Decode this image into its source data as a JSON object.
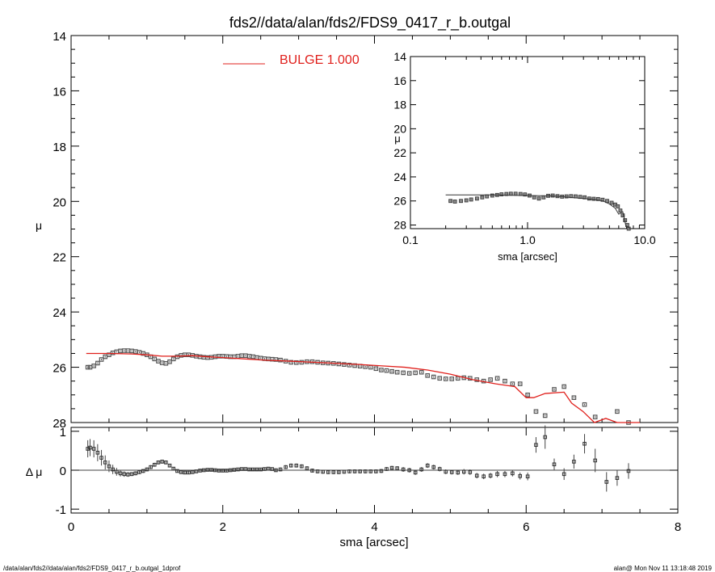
{
  "title": "fds2//data/alan/fds2/FDS9_0417_r_b.outgal",
  "footer": {
    "left": "/data/alan/fds2//data/alan/fds2/FDS9_0417_r_b.outgal_1dprof",
    "right": "alan@  Mon Nov 11 13:18:48 2019"
  },
  "colors": {
    "model": "#e0201c",
    "data": "#555555",
    "axis": "#000000"
  },
  "chart_data": [
    {
      "id": "main",
      "type": "scatter",
      "ylabel": "μ",
      "xlim": [
        0,
        8
      ],
      "ylim": [
        28,
        14
      ],
      "yticks": [
        "14",
        "16",
        "18",
        "20",
        "22",
        "24",
        "26",
        "28"
      ],
      "legend": {
        "label": "BULGE  1.000",
        "position": "top-left"
      },
      "series": [
        {
          "kind": "markers",
          "x": [
            0.22,
            0.25,
            0.3,
            0.35,
            0.4,
            0.45,
            0.5,
            0.55,
            0.6,
            0.65,
            0.7,
            0.75,
            0.8,
            0.85,
            0.9,
            0.95,
            1.0,
            1.05,
            1.1,
            1.15,
            1.2,
            1.25,
            1.3,
            1.35,
            1.4,
            1.45,
            1.5,
            1.55,
            1.6,
            1.65,
            1.7,
            1.75,
            1.8,
            1.85,
            1.9,
            1.95,
            2.0,
            2.05,
            2.1,
            2.15,
            2.2,
            2.25,
            2.3,
            2.35,
            2.4,
            2.45,
            2.5,
            2.55,
            2.6,
            2.65,
            2.7,
            2.76,
            2.83,
            2.9,
            2.97,
            3.04,
            3.11,
            3.18,
            3.25,
            3.32,
            3.39,
            3.46,
            3.53,
            3.6,
            3.67,
            3.74,
            3.81,
            3.88,
            3.95,
            4.02,
            4.09,
            4.16,
            4.23,
            4.3,
            4.38,
            4.46,
            4.54,
            4.62,
            4.7,
            4.78,
            4.86,
            4.94,
            5.02,
            5.1,
            5.18,
            5.26,
            5.35,
            5.44,
            5.53,
            5.62,
            5.72,
            5.82,
            5.92,
            6.02,
            6.13,
            6.25,
            6.37,
            6.5,
            6.63,
            6.77,
            6.91,
            7.06,
            7.2,
            7.35
          ],
          "y": [
            26.0,
            26.0,
            25.95,
            25.85,
            25.72,
            25.62,
            25.55,
            25.48,
            25.44,
            25.41,
            25.4,
            25.4,
            25.41,
            25.43,
            25.46,
            25.5,
            25.55,
            25.62,
            25.7,
            25.78,
            25.84,
            25.86,
            25.8,
            25.7,
            25.62,
            25.57,
            25.55,
            25.55,
            25.57,
            25.6,
            25.62,
            25.64,
            25.65,
            25.64,
            25.62,
            25.6,
            25.6,
            25.61,
            25.62,
            25.62,
            25.6,
            25.58,
            25.58,
            25.6,
            25.62,
            25.65,
            25.67,
            25.69,
            25.7,
            25.71,
            25.72,
            25.74,
            25.78,
            25.82,
            25.83,
            25.82,
            25.8,
            25.8,
            25.82,
            25.84,
            25.85,
            25.86,
            25.88,
            25.9,
            25.92,
            25.94,
            25.96,
            25.98,
            26.0,
            26.05,
            26.1,
            26.12,
            26.15,
            26.18,
            26.2,
            26.22,
            26.2,
            26.18,
            26.3,
            26.35,
            26.4,
            26.42,
            26.42,
            26.4,
            26.38,
            26.4,
            26.45,
            26.5,
            26.45,
            26.4,
            26.5,
            26.6,
            26.6,
            27.0,
            27.6,
            27.75,
            26.8,
            26.7,
            27.1,
            27.35,
            27.8,
            28.5,
            27.6,
            28.0
          ],
          "error": [
            0.03,
            0.03,
            0.03,
            0.03,
            0.03,
            0.03,
            0.03,
            0.03,
            0.03,
            0.03,
            0.03,
            0.03,
            0.03,
            0.03,
            0.03,
            0.03,
            0.03,
            0.03,
            0.03,
            0.03,
            0.03,
            0.03,
            0.03,
            0.03,
            0.03,
            0.03,
            0.03,
            0.03,
            0.03,
            0.03,
            0.03,
            0.03,
            0.03,
            0.03,
            0.03,
            0.03,
            0.03,
            0.03,
            0.03,
            0.03,
            0.03,
            0.03,
            0.03,
            0.03,
            0.03,
            0.03,
            0.03,
            0.03,
            0.03,
            0.03,
            0.03,
            0.03,
            0.03,
            0.03,
            0.03,
            0.03,
            0.03,
            0.03,
            0.03,
            0.03,
            0.03,
            0.03,
            0.03,
            0.03,
            0.03,
            0.03,
            0.03,
            0.03,
            0.03,
            0.03,
            0.03,
            0.03,
            0.03,
            0.03,
            0.03,
            0.03,
            0.03,
            0.03,
            0.03,
            0.03,
            0.03,
            0.03,
            0.03,
            0.03,
            0.03,
            0.03,
            0.03,
            0.03,
            0.03,
            0.03,
            0.03,
            0.03,
            0.03,
            0.03,
            0.03,
            0.03,
            0.03,
            0.03,
            0.03,
            0.03,
            0.03,
            0.03,
            0.03,
            0.03
          ]
        },
        {
          "kind": "line",
          "x": [
            0.2,
            0.5,
            0.8,
            1.0,
            1.2,
            1.4,
            1.6,
            1.8,
            2.0,
            2.3,
            2.6,
            2.9,
            3.2,
            3.5,
            3.8,
            4.1,
            4.4,
            4.7,
            5.0,
            5.3,
            5.6,
            5.85,
            6.0,
            6.1,
            6.25,
            6.5,
            6.6,
            6.75,
            6.9,
            7.05,
            7.2,
            7.5
          ],
          "y": [
            25.5,
            25.5,
            25.52,
            25.55,
            25.6,
            25.6,
            25.58,
            25.62,
            25.65,
            25.7,
            25.75,
            25.78,
            25.82,
            25.86,
            25.9,
            25.95,
            26.0,
            26.1,
            26.25,
            26.45,
            26.6,
            26.7,
            27.1,
            27.1,
            26.95,
            26.9,
            27.3,
            27.6,
            28.05,
            27.85,
            28.0,
            28.1
          ]
        }
      ]
    },
    {
      "id": "inset",
      "type": "scatter",
      "ylabel": "μ",
      "xlabel": "sma [arcsec]",
      "xscale": "log",
      "xlim": [
        0.1,
        10
      ],
      "ylim": [
        28.3,
        14
      ],
      "xticks": [
        {
          "v": 0.1,
          "label": "0.1"
        },
        {
          "v": 1,
          "label": "1.0"
        },
        {
          "v": 10,
          "label": "10.0"
        }
      ],
      "yticks": [
        "14",
        "16",
        "18",
        "20",
        "22",
        "24",
        "26",
        "28"
      ],
      "series": [
        {
          "kind": "markers",
          "x": [
            0.22,
            0.24,
            0.27,
            0.3,
            0.33,
            0.37,
            0.41,
            0.45,
            0.5,
            0.55,
            0.6,
            0.66,
            0.72,
            0.79,
            0.87,
            0.95,
            1.04,
            1.14,
            1.25,
            1.37,
            1.5,
            1.64,
            1.8,
            1.97,
            2.15,
            2.35,
            2.57,
            2.81,
            3.07,
            3.36,
            3.67,
            4.0,
            4.37,
            4.78,
            5.22,
            5.6,
            5.9,
            6.2,
            6.5,
            6.8,
            7.1,
            7.3
          ],
          "y": [
            26.0,
            26.05,
            26.0,
            25.95,
            25.88,
            25.8,
            25.7,
            25.62,
            25.55,
            25.5,
            25.45,
            25.42,
            25.4,
            25.4,
            25.42,
            25.46,
            25.55,
            25.7,
            25.8,
            25.7,
            25.57,
            25.55,
            25.6,
            25.64,
            25.62,
            25.6,
            25.62,
            25.66,
            25.7,
            25.8,
            25.82,
            25.84,
            25.9,
            26.0,
            26.15,
            26.3,
            26.45,
            26.8,
            27.2,
            27.6,
            28.0,
            28.3
          ]
        },
        {
          "kind": "line",
          "x": [
            0.2,
            0.5,
            1.0,
            1.6,
            2.0,
            2.6,
            3.2,
            3.8,
            4.4,
            5.0,
            5.6,
            6.0,
            6.5,
            6.9,
            7.5
          ],
          "y": [
            25.5,
            25.5,
            25.55,
            25.58,
            25.65,
            25.75,
            25.82,
            25.9,
            26.0,
            26.25,
            26.6,
            27.1,
            26.9,
            28.05,
            28.3
          ]
        }
      ]
    },
    {
      "id": "residual",
      "type": "scatter",
      "ylabel": "Δ μ",
      "xlabel": "sma [arcsec]",
      "xlim": [
        0,
        8
      ],
      "ylim": [
        -1.1,
        1.1
      ],
      "xticks": [
        "0",
        "2",
        "4",
        "6",
        "8"
      ],
      "yticks": [
        {
          "v": 1,
          "label": "1"
        },
        {
          "v": 0,
          "label": "0"
        },
        {
          "v": -1,
          "label": "-1"
        }
      ],
      "series": [
        {
          "kind": "markers",
          "x": [
            0.22,
            0.25,
            0.3,
            0.35,
            0.4,
            0.45,
            0.5,
            0.55,
            0.6,
            0.65,
            0.7,
            0.75,
            0.8,
            0.85,
            0.9,
            0.95,
            1.0,
            1.05,
            1.1,
            1.15,
            1.2,
            1.25,
            1.3,
            1.35,
            1.4,
            1.45,
            1.5,
            1.55,
            1.6,
            1.65,
            1.7,
            1.75,
            1.8,
            1.85,
            1.9,
            1.95,
            2.0,
            2.05,
            2.1,
            2.15,
            2.2,
            2.25,
            2.3,
            2.35,
            2.4,
            2.45,
            2.5,
            2.55,
            2.6,
            2.65,
            2.7,
            2.76,
            2.83,
            2.9,
            2.97,
            3.04,
            3.11,
            3.18,
            3.25,
            3.32,
            3.39,
            3.46,
            3.53,
            3.6,
            3.67,
            3.74,
            3.81,
            3.88,
            3.95,
            4.02,
            4.09,
            4.16,
            4.23,
            4.3,
            4.38,
            4.46,
            4.54,
            4.62,
            4.7,
            4.78,
            4.86,
            4.94,
            5.02,
            5.1,
            5.18,
            5.26,
            5.35,
            5.44,
            5.53,
            5.62,
            5.72,
            5.82,
            5.92,
            6.02,
            6.13,
            6.25,
            6.37,
            6.5,
            6.63,
            6.77,
            6.91,
            7.06,
            7.2,
            7.35
          ],
          "y": [
            0.55,
            0.58,
            0.55,
            0.45,
            0.32,
            0.2,
            0.1,
            0.02,
            -0.04,
            -0.08,
            -0.1,
            -0.11,
            -0.1,
            -0.08,
            -0.05,
            -0.02,
            0.02,
            0.08,
            0.14,
            0.2,
            0.22,
            0.2,
            0.12,
            0.04,
            -0.02,
            -0.05,
            -0.06,
            -0.06,
            -0.05,
            -0.03,
            -0.01,
            0.0,
            0.01,
            0.01,
            0.0,
            -0.01,
            -0.01,
            -0.01,
            0.0,
            0.01,
            0.02,
            0.03,
            0.03,
            0.02,
            0.02,
            0.02,
            0.02,
            0.03,
            0.04,
            0.03,
            0.0,
            0.02,
            0.08,
            0.12,
            0.12,
            0.1,
            0.05,
            -0.01,
            -0.03,
            -0.04,
            -0.05,
            -0.05,
            -0.05,
            -0.04,
            -0.03,
            -0.03,
            -0.03,
            -0.03,
            -0.03,
            -0.03,
            -0.02,
            0.03,
            0.06,
            0.05,
            0.02,
            0.0,
            -0.06,
            0.02,
            0.12,
            0.08,
            0.03,
            -0.04,
            -0.05,
            -0.06,
            -0.04,
            -0.05,
            -0.14,
            -0.16,
            -0.14,
            -0.1,
            -0.1,
            -0.08,
            -0.15,
            -0.16,
            0.65,
            0.85,
            0.15,
            -0.1,
            0.22,
            0.68,
            0.25,
            -0.3,
            -0.2,
            -0.02
          ],
          "error": [
            0.22,
            0.22,
            0.22,
            0.22,
            0.2,
            0.18,
            0.15,
            0.12,
            0.1,
            0.08,
            0.07,
            0.06,
            0.05,
            0.05,
            0.05,
            0.05,
            0.05,
            0.05,
            0.05,
            0.05,
            0.05,
            0.05,
            0.04,
            0.04,
            0.04,
            0.04,
            0.04,
            0.04,
            0.04,
            0.04,
            0.04,
            0.04,
            0.04,
            0.04,
            0.04,
            0.04,
            0.04,
            0.04,
            0.04,
            0.04,
            0.04,
            0.04,
            0.04,
            0.04,
            0.04,
            0.04,
            0.04,
            0.04,
            0.04,
            0.04,
            0.04,
            0.05,
            0.05,
            0.05,
            0.05,
            0.05,
            0.05,
            0.05,
            0.05,
            0.05,
            0.05,
            0.05,
            0.05,
            0.05,
            0.05,
            0.05,
            0.05,
            0.05,
            0.05,
            0.05,
            0.05,
            0.05,
            0.05,
            0.05,
            0.06,
            0.06,
            0.06,
            0.06,
            0.06,
            0.06,
            0.06,
            0.06,
            0.06,
            0.06,
            0.07,
            0.07,
            0.07,
            0.07,
            0.07,
            0.08,
            0.08,
            0.08,
            0.09,
            0.1,
            0.2,
            0.3,
            0.15,
            0.15,
            0.18,
            0.25,
            0.3,
            0.25,
            0.2,
            0.2
          ]
        }
      ]
    }
  ]
}
